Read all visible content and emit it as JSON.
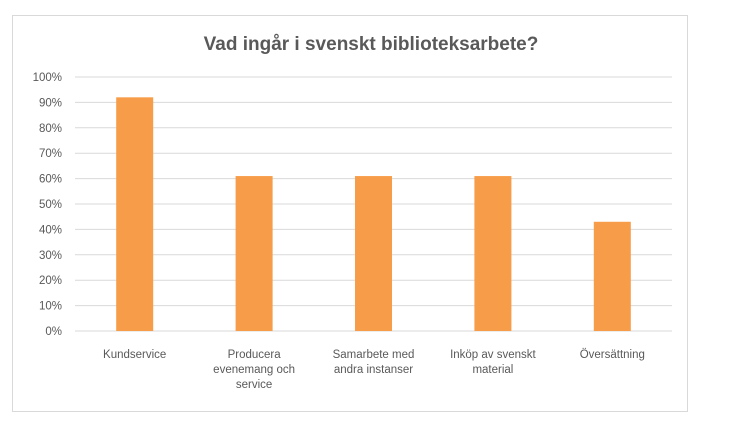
{
  "chart_data": {
    "type": "bar",
    "title": "Vad ingår i svenskt biblioteksarbete?",
    "xlabel": "",
    "ylabel": "",
    "categories": [
      [
        "Kundservice"
      ],
      [
        "Producera",
        "evenemang och",
        "service"
      ],
      [
        "Samarbete med",
        "andra instanser"
      ],
      [
        "Inköp av svenskt",
        "material"
      ],
      [
        "Översättning"
      ]
    ],
    "values": [
      92,
      61,
      61,
      61,
      43
    ],
    "ylim": [
      0,
      100
    ],
    "yticks": [
      "0%",
      "10%",
      "20%",
      "30%",
      "40%",
      "50%",
      "60%",
      "70%",
      "80%",
      "90%",
      "100%"
    ],
    "grid": true,
    "legend": "none",
    "colors": {
      "bar": "#F79C48",
      "grid": "#D9D9D9",
      "text": "#595959"
    }
  }
}
